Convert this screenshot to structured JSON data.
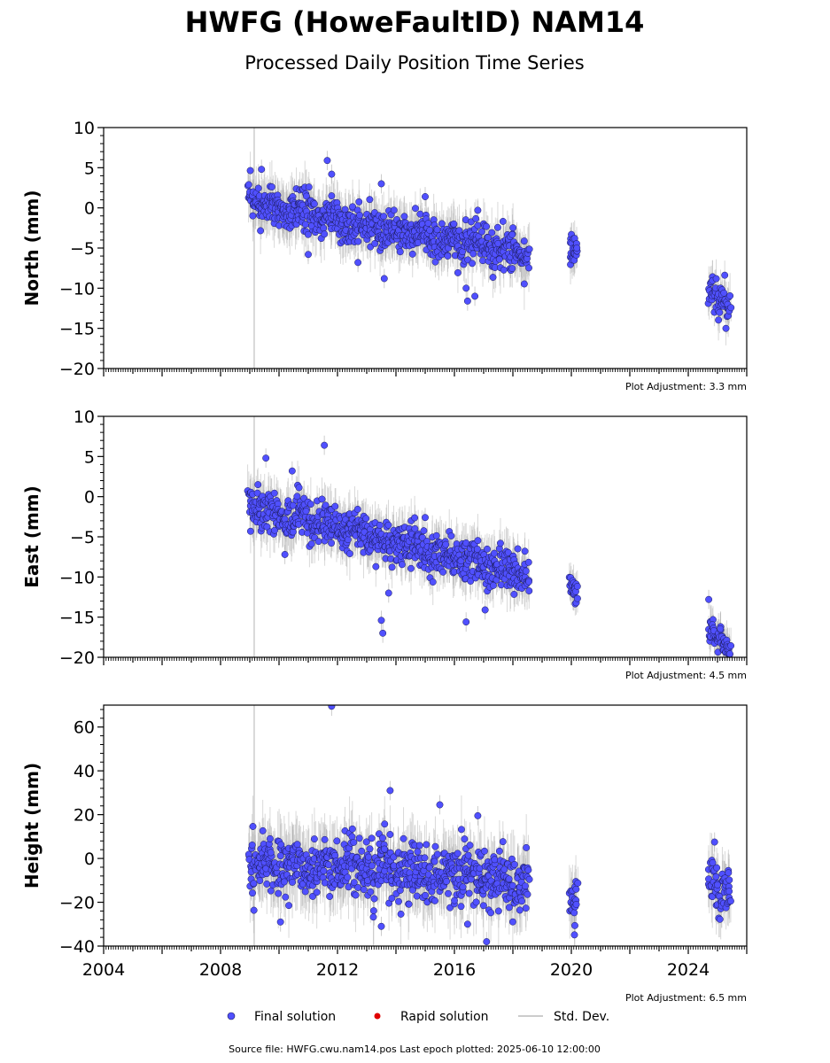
{
  "title": "HWFG (HoweFaultID) NAM14",
  "subtitle": "Processed Daily Position Time Series",
  "footer": "Source file: HWFG.cwu.nam14.pos  Last epoch plotted: 2025-06-10 12:00:00",
  "legend": [
    {
      "label": "Final solution",
      "color": "#5050ff",
      "kind": "dot"
    },
    {
      "label": "Rapid solution",
      "color": "#e00000",
      "kind": "dot"
    },
    {
      "label": "Std. Dev.",
      "color": "#bbbbbb",
      "kind": "line"
    }
  ],
  "colors": {
    "final": "#5050ff",
    "outline": "#1a1a55",
    "stddev": "#aaaaaa",
    "axes": "#000000"
  },
  "chart_data": [
    {
      "type": "scatter",
      "ylabel": "North (mm)",
      "ylim": [
        -20,
        10
      ],
      "yticks": [
        -20,
        -15,
        -10,
        -5,
        0,
        5,
        10
      ],
      "ytick_labels": [
        "−20",
        "−15",
        "−10",
        "−5",
        "0",
        "5",
        "10"
      ],
      "xlim": [
        2004,
        2026
      ],
      "x_tick_labels_shown": false,
      "adjustment": "Plot Adjustment: 3.3 mm",
      "segments": [
        {
          "x_start": 2008.95,
          "x_end": 2018.55,
          "y_start": 0.5,
          "y_end": -5.8,
          "spread": 1.3
        },
        {
          "x_start": 2019.95,
          "x_end": 2020.2,
          "y_start": -6.0,
          "y_end": -5.8,
          "spread": 1.0
        },
        {
          "x_start": 2024.7,
          "x_end": 2025.45,
          "y_start": -10.5,
          "y_end": -11.8,
          "spread": 1.1
        }
      ],
      "outliers": [
        {
          "x": 2011.65,
          "y": 5.9
        },
        {
          "x": 2009.4,
          "y": 4.8
        },
        {
          "x": 2011.8,
          "y": 4.2
        },
        {
          "x": 2013.5,
          "y": 3.0
        },
        {
          "x": 2011.0,
          "y": -5.8
        },
        {
          "x": 2012.7,
          "y": -6.8
        },
        {
          "x": 2013.6,
          "y": -8.8
        },
        {
          "x": 2016.4,
          "y": -10.0
        },
        {
          "x": 2016.45,
          "y": -11.6
        },
        {
          "x": 2016.7,
          "y": -11.0
        },
        {
          "x": 2015.0,
          "y": 1.4
        },
        {
          "x": 2016.8,
          "y": -0.3
        }
      ]
    },
    {
      "type": "scatter",
      "ylabel": "East (mm)",
      "ylim": [
        -20,
        10
      ],
      "yticks": [
        -20,
        -15,
        -10,
        -5,
        0,
        5,
        10
      ],
      "ytick_labels": [
        "−20",
        "−15",
        "−10",
        "−5",
        "0",
        "5",
        "10"
      ],
      "xlim": [
        2004,
        2026
      ],
      "x_tick_labels_shown": false,
      "adjustment": "Plot Adjustment: 4.5 mm",
      "segments": [
        {
          "x_start": 2008.95,
          "x_end": 2018.55,
          "y_start": -1.2,
          "y_end": -9.8,
          "spread": 1.3
        },
        {
          "x_start": 2019.95,
          "x_end": 2020.2,
          "y_start": -11.0,
          "y_end": -11.3,
          "spread": 0.9
        },
        {
          "x_start": 2024.7,
          "x_end": 2025.45,
          "y_start": -16.5,
          "y_end": -19.2,
          "spread": 1.0
        }
      ],
      "outliers": [
        {
          "x": 2011.55,
          "y": 6.4
        },
        {
          "x": 2009.55,
          "y": 4.8
        },
        {
          "x": 2010.45,
          "y": 3.2
        },
        {
          "x": 2013.5,
          "y": -15.4
        },
        {
          "x": 2013.55,
          "y": -17.0
        },
        {
          "x": 2013.75,
          "y": -12.0
        },
        {
          "x": 2016.4,
          "y": -15.6
        },
        {
          "x": 2017.05,
          "y": -14.1
        },
        {
          "x": 2010.2,
          "y": -7.2
        },
        {
          "x": 2024.7,
          "y": -12.8
        },
        {
          "x": 2015.0,
          "y": -2.6
        }
      ]
    },
    {
      "type": "scatter",
      "ylabel": "Height (mm)",
      "ylim": [
        -40,
        70
      ],
      "yticks": [
        -40,
        -20,
        0,
        20,
        40,
        60
      ],
      "ytick_labels": [
        "−40",
        "−20",
        "0",
        "20",
        "40",
        "60"
      ],
      "xlim": [
        2004,
        2026
      ],
      "x_tick_labels_shown": true,
      "xticks": [
        2004,
        2008,
        2012,
        2016,
        2020,
        2024
      ],
      "xtick_labels": [
        "2004",
        "2008",
        "2012",
        "2016",
        "2020",
        "2024"
      ],
      "adjustment": "Plot Adjustment: 6.5 mm",
      "segments": [
        {
          "x_start": 2008.95,
          "x_end": 2018.55,
          "y_start": -2.0,
          "y_end": -10.0,
          "spread": 6.5
        },
        {
          "x_start": 2019.95,
          "x_end": 2020.2,
          "y_start": -16.0,
          "y_end": -19.0,
          "spread": 5.0
        },
        {
          "x_start": 2024.7,
          "x_end": 2025.45,
          "y_start": -8.0,
          "y_end": -17.0,
          "spread": 5.5
        }
      ],
      "outliers": [
        {
          "x": 2011.8,
          "y": 69.5
        },
        {
          "x": 2013.8,
          "y": 31.0
        },
        {
          "x": 2015.5,
          "y": 24.5
        },
        {
          "x": 2013.5,
          "y": -31.0
        },
        {
          "x": 2010.05,
          "y": -29.0
        },
        {
          "x": 2016.45,
          "y": -30.0
        },
        {
          "x": 2017.1,
          "y": -38.0
        },
        {
          "x": 2016.8,
          "y": 19.5
        },
        {
          "x": 2024.9,
          "y": 7.5
        }
      ]
    }
  ],
  "events": [
    {
      "x": 2009.15,
      "label": ""
    }
  ]
}
